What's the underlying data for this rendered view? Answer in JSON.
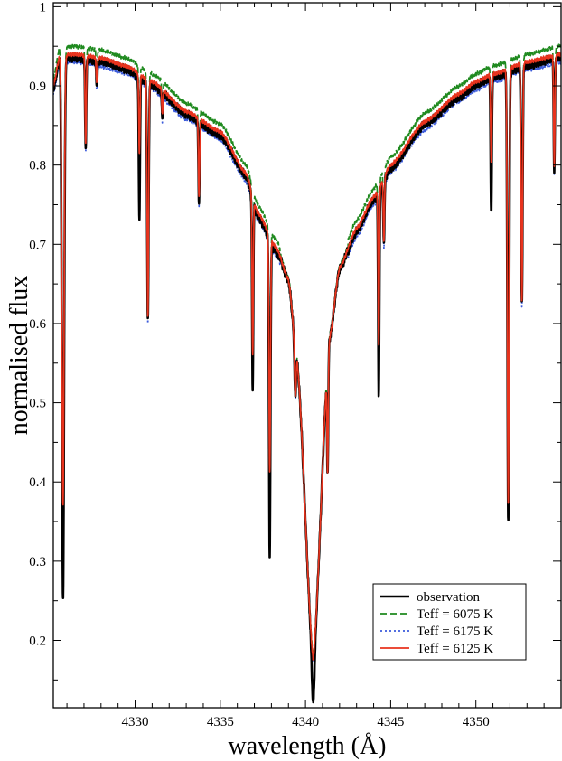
{
  "chart_data": {
    "type": "line",
    "title": "",
    "xlabel": "wavelength (Å)",
    "ylabel": "normalised flux",
    "xlim": [
      4325.2,
      4355.0
    ],
    "ylim": [
      0.115,
      1.005
    ],
    "x_ticks": [
      4330,
      4335,
      4340,
      4345,
      4350
    ],
    "y_ticks": [
      0.2,
      0.3,
      0.4,
      0.5,
      0.6,
      0.7,
      0.8,
      0.9,
      1.0
    ],
    "x_tick_labels": [
      "4330",
      "4335",
      "4340",
      "4345",
      "4350"
    ],
    "y_tick_labels": [
      "0.2",
      "0.3",
      "0.4",
      "0.5",
      "0.6",
      "0.7",
      "0.8",
      "0.9",
      "1"
    ],
    "grid": false,
    "legend_position": "bottom-right",
    "continuum": {
      "x": [
        4325.2,
        4325.6,
        4326.5,
        4328.0,
        4329.5,
        4331.0,
        4333.0,
        4335.0,
        4336.5,
        4337.2,
        4338.3,
        4339.0,
        4339.5,
        4340.45,
        4341.4,
        4342.0,
        4343.0,
        4344.0,
        4345.0,
        4347.0,
        4349.0,
        4350.0,
        4351.0,
        4353.0,
        4355.0
      ],
      "y": [
        0.9,
        0.94,
        0.94,
        0.935,
        0.925,
        0.905,
        0.868,
        0.842,
        0.79,
        0.74,
        0.695,
        0.655,
        0.555,
        0.175,
        0.58,
        0.67,
        0.72,
        0.76,
        0.8,
        0.855,
        0.89,
        0.905,
        0.915,
        0.93,
        0.94
      ]
    },
    "absorption_lines": [
      {
        "center": 4325.77,
        "obs_depth": 0.68,
        "model_depth": 0.57,
        "width": 0.09
      },
      {
        "center": 4327.1,
        "obs_depth": 0.11,
        "model_depth": 0.11,
        "width": 0.05
      },
      {
        "center": 4327.75,
        "obs_depth": 0.03,
        "model_depth": 0.03,
        "width": 0.05
      },
      {
        "center": 4330.25,
        "obs_depth": 0.18,
        "model_depth": 0.1,
        "width": 0.05
      },
      {
        "center": 4330.75,
        "obs_depth": 0.3,
        "model_depth": 0.3,
        "width": 0.06
      },
      {
        "center": 4331.6,
        "obs_depth": 0.03,
        "model_depth": 0.03,
        "width": 0.05
      },
      {
        "center": 4333.75,
        "obs_depth": 0.1,
        "model_depth": 0.1,
        "width": 0.05
      },
      {
        "center": 4336.9,
        "obs_depth": 0.24,
        "model_depth": 0.2,
        "width": 0.05
      },
      {
        "center": 4337.9,
        "obs_depth": 0.4,
        "model_depth": 0.3,
        "width": 0.06
      },
      {
        "center": 4339.4,
        "obs_depth": 0.06,
        "model_depth": 0.06,
        "width": 0.06
      },
      {
        "center": 4341.3,
        "obs_depth": 0.14,
        "model_depth": 0.14,
        "width": 0.05
      },
      {
        "center": 4344.3,
        "obs_depth": 0.26,
        "model_depth": 0.2,
        "width": 0.05
      },
      {
        "center": 4344.6,
        "obs_depth": 0.08,
        "model_depth": 0.08,
        "width": 0.05
      },
      {
        "center": 4350.9,
        "obs_depth": 0.17,
        "model_depth": 0.11,
        "width": 0.05
      },
      {
        "center": 4351.9,
        "obs_depth": 0.57,
        "model_depth": 0.55,
        "width": 0.07
      },
      {
        "center": 4352.7,
        "obs_depth": 0.3,
        "model_depth": 0.3,
        "width": 0.06
      },
      {
        "center": 4354.6,
        "obs_depth": 0.14,
        "model_depth": 0.14,
        "width": 0.05
      }
    ],
    "h_gamma_core": {
      "center": 4340.45,
      "obs_extra_depth": 0.055,
      "width": 0.11
    },
    "series": [
      {
        "name": "observation",
        "color": "#000000",
        "style": "solid",
        "offset": -0.004
      },
      {
        "name": "Teff = 6075 K",
        "color": "#1f8a1f",
        "style": "dashed",
        "offset": 0.01
      },
      {
        "name": "Teff = 6175 K",
        "color": "#3b5bdb",
        "style": "dotted",
        "offset": -0.01
      },
      {
        "name": "Teff = 6125 K",
        "color": "#e8331d",
        "style": "solid",
        "offset": 0.0
      }
    ]
  }
}
